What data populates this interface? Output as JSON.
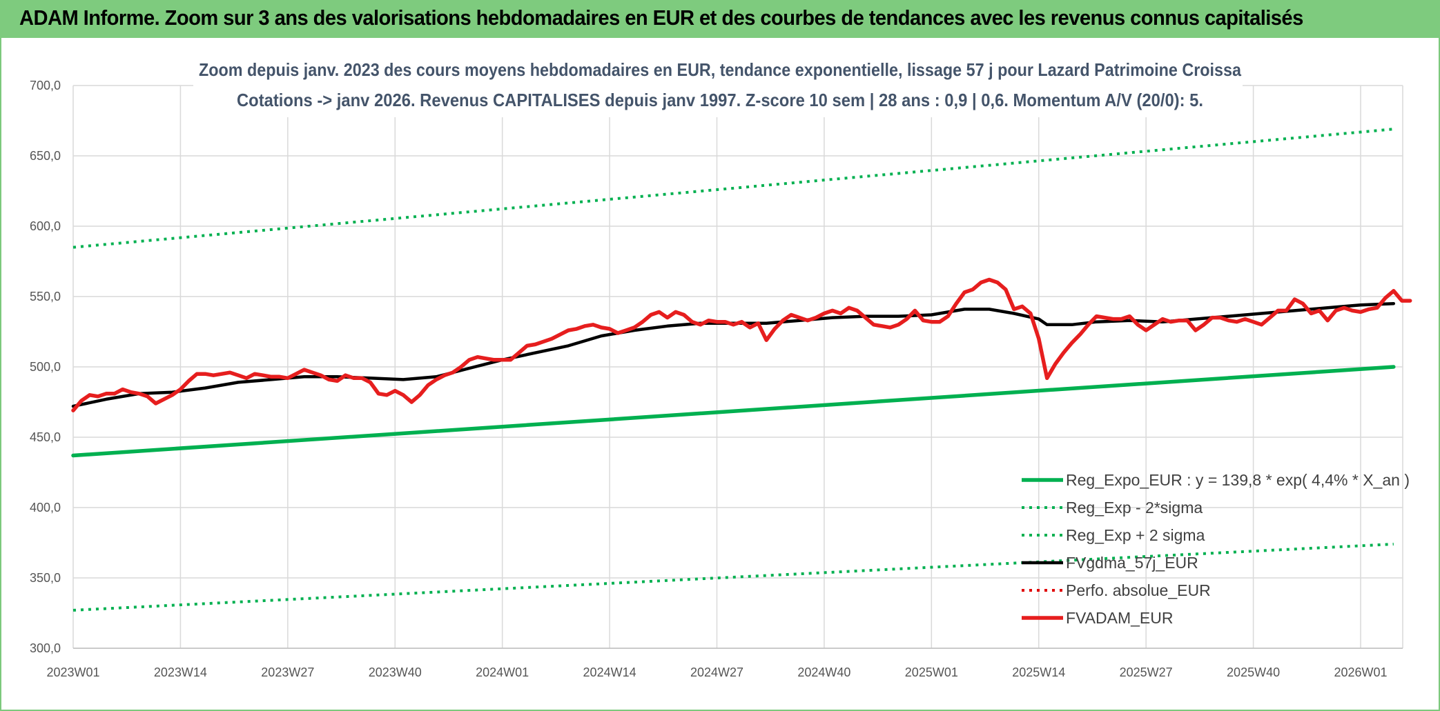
{
  "banner": {
    "title": "ADAM Informe. Zoom sur 3 ans des valorisations hebdomadaires en EUR et des courbes de tendances avec les revenus connus capitalisés",
    "background": "#7ecb7e"
  },
  "chart_data": {
    "type": "line",
    "title_line1": "Zoom depuis janv. 2023 des cours moyens hebdomadaires en EUR, tendance exponentielle, lissage 57 j pour Lazard Patrimoine Croissa",
    "title_line2": "Cotations -> janv 2026. Revenus CAPITALISES depuis janv 1997. Z-score 10 sem | 28 ans : 0,9 | 0,6. Momentum A/V (20/0): 5.",
    "ylim": [
      300,
      700
    ],
    "yticks": [
      "300,0",
      "350,0",
      "400,0",
      "450,0",
      "500,0",
      "550,0",
      "600,0",
      "650,0",
      "700,0"
    ],
    "xticks": [
      {
        "label": "2023W01",
        "week": 0
      },
      {
        "label": "2023W14",
        "week": 13
      },
      {
        "label": "2023W27",
        "week": 26
      },
      {
        "label": "2023W40",
        "week": 39
      },
      {
        "label": "2024W01",
        "week": 52
      },
      {
        "label": "2024W14",
        "week": 65
      },
      {
        "label": "2024W27",
        "week": 78
      },
      {
        "label": "2024W40",
        "week": 91
      },
      {
        "label": "2025W01",
        "week": 104
      },
      {
        "label": "2025W14",
        "week": 117
      },
      {
        "label": "2025W27",
        "week": 130
      },
      {
        "label": "2025W40",
        "week": 143
      },
      {
        "label": "2026W01",
        "week": 156
      }
    ],
    "x_max_week": 160,
    "grid": true,
    "legend_position": "bottom-right",
    "series": [
      {
        "name": "Reg_Expo_EUR : y = 139,8 * exp( 4,4% *  X_an )",
        "color": "#00b050",
        "style": "solid-thick",
        "points": [
          [
            0,
            437
          ],
          [
            160,
            500
          ]
        ]
      },
      {
        "name": "Reg_Exp - 2*sigma",
        "color": "#00b050",
        "style": "dotted",
        "points": [
          [
            0,
            327
          ],
          [
            160,
            374
          ]
        ]
      },
      {
        "name": "Reg_Exp + 2 sigma",
        "color": "#00b050",
        "style": "dotted",
        "points": [
          [
            0,
            585
          ],
          [
            160,
            669
          ]
        ]
      },
      {
        "name": "FVgdma_57j_EUR",
        "color": "#000000",
        "style": "solid",
        "points": [
          [
            0,
            472
          ],
          [
            4,
            477
          ],
          [
            8,
            481
          ],
          [
            12,
            482
          ],
          [
            16,
            485
          ],
          [
            20,
            489
          ],
          [
            24,
            491
          ],
          [
            28,
            493
          ],
          [
            32,
            493
          ],
          [
            36,
            492
          ],
          [
            40,
            491
          ],
          [
            44,
            493
          ],
          [
            48,
            499
          ],
          [
            52,
            505
          ],
          [
            56,
            510
          ],
          [
            60,
            515
          ],
          [
            64,
            522
          ],
          [
            68,
            526
          ],
          [
            72,
            529
          ],
          [
            76,
            531
          ],
          [
            80,
            531
          ],
          [
            84,
            531
          ],
          [
            88,
            533
          ],
          [
            92,
            535
          ],
          [
            96,
            536
          ],
          [
            100,
            536
          ],
          [
            104,
            537
          ],
          [
            108,
            541
          ],
          [
            111,
            541
          ],
          [
            114,
            538
          ],
          [
            117,
            534
          ],
          [
            118,
            530
          ],
          [
            121,
            530
          ],
          [
            124,
            532
          ],
          [
            128,
            533
          ],
          [
            132,
            532
          ],
          [
            136,
            534
          ],
          [
            140,
            536
          ],
          [
            144,
            538
          ],
          [
            148,
            540
          ],
          [
            152,
            542
          ],
          [
            156,
            544
          ],
          [
            160,
            545
          ]
        ]
      },
      {
        "name": "Perfo. absolue_EUR",
        "color": "#e00000",
        "style": "dotted",
        "points": []
      },
      {
        "name": "FVADAM_EUR",
        "color": "#e61e1e",
        "style": "solid-thick",
        "points": [
          [
            0,
            469
          ],
          [
            1,
            476
          ],
          [
            2,
            480
          ],
          [
            3,
            479
          ],
          [
            4,
            481
          ],
          [
            5,
            481
          ],
          [
            6,
            484
          ],
          [
            7,
            482
          ],
          [
            8,
            481
          ],
          [
            9,
            479
          ],
          [
            10,
            474
          ],
          [
            11,
            477
          ],
          [
            12,
            480
          ],
          [
            13,
            484
          ],
          [
            14,
            490
          ],
          [
            15,
            495
          ],
          [
            16,
            495
          ],
          [
            17,
            494
          ],
          [
            18,
            495
          ],
          [
            19,
            496
          ],
          [
            20,
            494
          ],
          [
            21,
            492
          ],
          [
            22,
            495
          ],
          [
            23,
            494
          ],
          [
            24,
            493
          ],
          [
            25,
            493
          ],
          [
            26,
            492
          ],
          [
            27,
            495
          ],
          [
            28,
            498
          ],
          [
            29,
            496
          ],
          [
            30,
            494
          ],
          [
            31,
            491
          ],
          [
            32,
            490
          ],
          [
            33,
            494
          ],
          [
            34,
            492
          ],
          [
            35,
            492
          ],
          [
            36,
            489
          ],
          [
            37,
            481
          ],
          [
            38,
            480
          ],
          [
            39,
            483
          ],
          [
            40,
            480
          ],
          [
            41,
            475
          ],
          [
            42,
            480
          ],
          [
            43,
            487
          ],
          [
            44,
            491
          ],
          [
            45,
            494
          ],
          [
            46,
            496
          ],
          [
            47,
            500
          ],
          [
            48,
            505
          ],
          [
            49,
            507
          ],
          [
            50,
            506
          ],
          [
            51,
            505
          ],
          [
            52,
            505
          ],
          [
            53,
            505
          ],
          [
            54,
            510
          ],
          [
            55,
            515
          ],
          [
            56,
            516
          ],
          [
            57,
            518
          ],
          [
            58,
            520
          ],
          [
            59,
            523
          ],
          [
            60,
            526
          ],
          [
            61,
            527
          ],
          [
            62,
            529
          ],
          [
            63,
            530
          ],
          [
            64,
            528
          ],
          [
            65,
            527
          ],
          [
            66,
            524
          ],
          [
            67,
            526
          ],
          [
            68,
            528
          ],
          [
            69,
            532
          ],
          [
            70,
            537
          ],
          [
            71,
            539
          ],
          [
            72,
            535
          ],
          [
            73,
            539
          ],
          [
            74,
            537
          ],
          [
            75,
            532
          ],
          [
            76,
            530
          ],
          [
            77,
            533
          ],
          [
            78,
            532
          ],
          [
            79,
            532
          ],
          [
            80,
            530
          ],
          [
            81,
            532
          ],
          [
            82,
            528
          ],
          [
            83,
            531
          ],
          [
            84,
            519
          ],
          [
            85,
            527
          ],
          [
            86,
            533
          ],
          [
            87,
            537
          ],
          [
            88,
            535
          ],
          [
            89,
            533
          ],
          [
            90,
            535
          ],
          [
            91,
            538
          ],
          [
            92,
            540
          ],
          [
            93,
            538
          ],
          [
            94,
            542
          ],
          [
            95,
            540
          ],
          [
            96,
            535
          ],
          [
            97,
            530
          ],
          [
            98,
            529
          ],
          [
            99,
            528
          ],
          [
            100,
            530
          ],
          [
            101,
            534
          ],
          [
            102,
            540
          ],
          [
            103,
            533
          ],
          [
            104,
            532
          ],
          [
            105,
            532
          ],
          [
            106,
            536
          ],
          [
            107,
            545
          ],
          [
            108,
            553
          ],
          [
            109,
            555
          ],
          [
            110,
            560
          ],
          [
            111,
            562
          ],
          [
            112,
            560
          ],
          [
            113,
            555
          ],
          [
            114,
            541
          ],
          [
            115,
            543
          ],
          [
            116,
            538
          ],
          [
            117,
            520
          ],
          [
            118,
            492
          ],
          [
            119,
            502
          ],
          [
            120,
            510
          ],
          [
            121,
            517
          ],
          [
            122,
            523
          ],
          [
            123,
            530
          ],
          [
            124,
            536
          ],
          [
            125,
            535
          ],
          [
            126,
            534
          ],
          [
            127,
            534
          ],
          [
            128,
            536
          ],
          [
            129,
            530
          ],
          [
            130,
            526
          ],
          [
            131,
            530
          ],
          [
            132,
            534
          ],
          [
            133,
            532
          ],
          [
            134,
            533
          ],
          [
            135,
            533
          ],
          [
            136,
            526
          ],
          [
            137,
            530
          ],
          [
            138,
            535
          ],
          [
            139,
            535
          ],
          [
            140,
            533
          ],
          [
            141,
            532
          ],
          [
            142,
            534
          ],
          [
            143,
            532
          ],
          [
            144,
            530
          ],
          [
            145,
            535
          ],
          [
            146,
            540
          ],
          [
            147,
            540
          ],
          [
            148,
            548
          ],
          [
            149,
            545
          ],
          [
            150,
            538
          ],
          [
            151,
            540
          ],
          [
            152,
            533
          ],
          [
            153,
            540
          ],
          [
            154,
            542
          ],
          [
            155,
            540
          ],
          [
            156,
            539
          ],
          [
            157,
            541
          ],
          [
            158,
            542
          ],
          [
            159,
            549
          ],
          [
            160,
            554
          ],
          [
            161,
            547
          ],
          [
            162,
            547
          ]
        ]
      }
    ]
  }
}
